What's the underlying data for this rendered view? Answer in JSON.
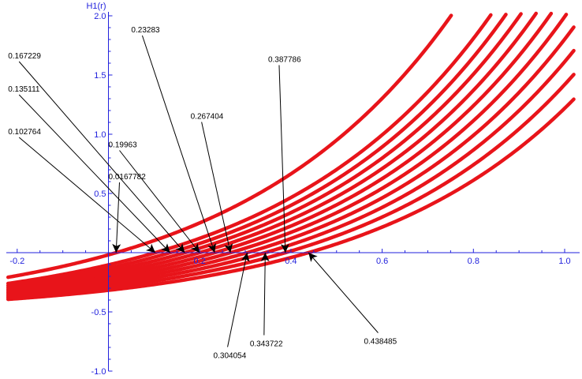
{
  "chart_data": {
    "type": "line",
    "title": "",
    "xlabel": "",
    "ylabel": "H1(r)",
    "xlim": [
      -0.22,
      1.02
    ],
    "ylim": [
      -1.0,
      2.0
    ],
    "grid": false,
    "colors": {
      "axis": "#2222dd",
      "curve": "#e8141a",
      "arrow": "#000000",
      "label": "#000000"
    },
    "x_ticks": [
      {
        "value": -0.2,
        "label": "-0.2"
      },
      {
        "value": 0.2,
        "label": "0.2"
      },
      {
        "value": 0.4,
        "label": "0.4"
      },
      {
        "value": 0.6,
        "label": "0.6"
      },
      {
        "value": 0.8,
        "label": "0.8"
      },
      {
        "value": 1.0,
        "label": "1.0"
      }
    ],
    "y_ticks": [
      {
        "value": -1.0,
        "label": "-1.0"
      },
      {
        "value": -0.5,
        "label": "-0.5"
      },
      {
        "value": 0.5,
        "label": "0.5"
      },
      {
        "value": 1.0,
        "label": "1.0"
      },
      {
        "value": 1.5,
        "label": "1.5"
      },
      {
        "value": 2.0,
        "label": "2.0"
      }
    ],
    "curve_shape": {
      "a": 0.52,
      "k": 2.15
    },
    "roots": [
      0.0167782,
      0.102764,
      0.135111,
      0.167229,
      0.19963,
      0.23283,
      0.267404,
      0.304054,
      0.343722,
      0.387786,
      0.438485
    ],
    "annotations": [
      {
        "label": "0.0167782",
        "root": 0.0167782,
        "label_x": 0.0,
        "label_y": 0.62
      },
      {
        "label": "0.102764",
        "root": 0.102764,
        "label_x": -0.22,
        "label_y": 1.0
      },
      {
        "label": "0.135111",
        "root": 0.135111,
        "label_x": -0.22,
        "label_y": 1.36
      },
      {
        "label": "0.167229",
        "root": 0.167229,
        "label_x": -0.22,
        "label_y": 1.64
      },
      {
        "label": "0.19963",
        "root": 0.19963,
        "label_x": 0.0,
        "label_y": 0.89
      },
      {
        "label": "0.23283",
        "root": 0.23283,
        "label_x": 0.05,
        "label_y": 1.86
      },
      {
        "label": "0.267404",
        "root": 0.267404,
        "label_x": 0.18,
        "label_y": 1.13
      },
      {
        "label": "0.387786",
        "root": 0.387786,
        "label_x": 0.35,
        "label_y": 1.61
      },
      {
        "label": "0.304054",
        "root": 0.304054,
        "label_x": 0.23,
        "label_y": -0.89
      },
      {
        "label": "0.343722",
        "root": 0.343722,
        "label_x": 0.31,
        "label_y": -0.79
      },
      {
        "label": "0.438485",
        "root": 0.438485,
        "label_x": 0.56,
        "label_y": -0.77
      }
    ]
  }
}
